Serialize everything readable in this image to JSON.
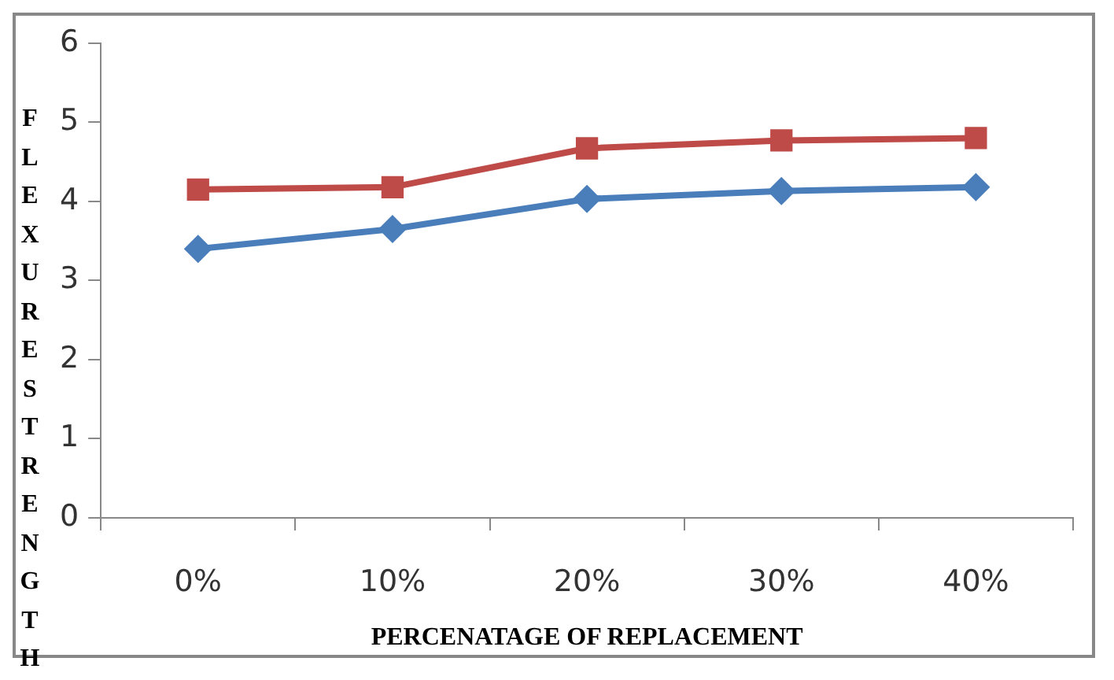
{
  "chart_data": {
    "type": "line",
    "xlabel": "PERCENATAGE OF REPLACEMENT",
    "ylabel": "FLEXURE STRENGTH",
    "categories": [
      "0%",
      "10%",
      "20%",
      "30%",
      "40%"
    ],
    "series": [
      {
        "color": "#4a7ebb",
        "marker": "diamond",
        "values": [
          3.4,
          3.65,
          4.03,
          4.13,
          4.18
        ]
      },
      {
        "color": "#be4b48",
        "marker": "square",
        "values": [
          4.15,
          4.18,
          4.67,
          4.77,
          4.8
        ]
      }
    ],
    "ylim": [
      0,
      6
    ],
    "yticks": [
      0,
      1,
      2,
      3,
      4,
      5,
      6
    ],
    "grid": false,
    "legend": false
  }
}
